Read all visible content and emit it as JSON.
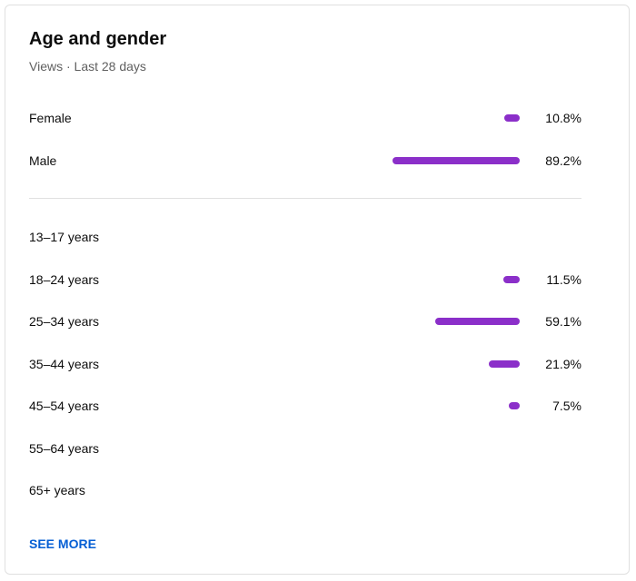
{
  "header": {
    "title": "Age and gender",
    "subtitle": "Views · Last 28 days"
  },
  "bar_color": "#8b2fc9",
  "gender": {
    "rows": [
      {
        "label": "Female",
        "value": 10.8,
        "value_label": "10.8%"
      },
      {
        "label": "Male",
        "value": 89.2,
        "value_label": "89.2%"
      }
    ]
  },
  "age": {
    "rows": [
      {
        "label": "13–17 years"
      },
      {
        "label": "18–24 years",
        "value": 11.5,
        "value_label": "11.5%"
      },
      {
        "label": "25–34 years",
        "value": 59.1,
        "value_label": "59.1%"
      },
      {
        "label": "35–44 years",
        "value": 21.9,
        "value_label": "21.9%"
      },
      {
        "label": "45–54 years",
        "value": 7.5,
        "value_label": "7.5%"
      },
      {
        "label": "55–64 years"
      },
      {
        "label": "65+ years"
      }
    ]
  },
  "link": "SEE MORE"
}
